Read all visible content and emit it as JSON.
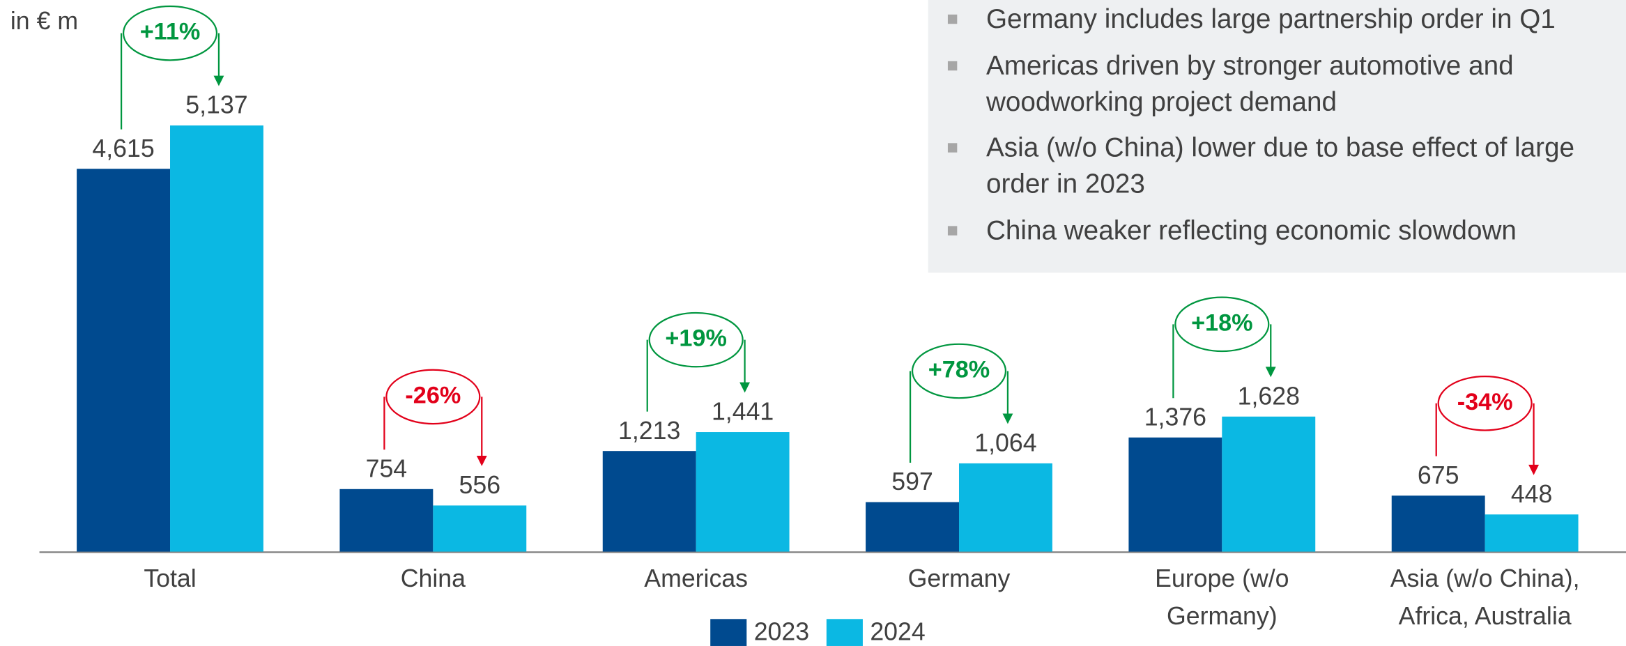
{
  "chart_data": {
    "type": "bar",
    "unit_label": "in € m",
    "categories": [
      "Total",
      "China",
      "Americas",
      "Germany",
      "Europe (w/o Germany)",
      "Asia (w/o China), Africa, Australia"
    ],
    "series": [
      {
        "name": "2023",
        "color": "#004a8f",
        "values": [
          4615,
          754,
          1213,
          597,
          1376,
          675
        ],
        "value_labels": [
          "4,615",
          "754",
          "1,213",
          "597",
          "1,376",
          "675"
        ]
      },
      {
        "name": "2024",
        "color": "#0bb8e3",
        "values": [
          5137,
          556,
          1441,
          1064,
          1628,
          448
        ],
        "value_labels": [
          "5,137",
          "556",
          "1,441",
          "1,064",
          "1,628",
          "448"
        ]
      }
    ],
    "annotations": [
      {
        "text": "+11%",
        "color": "#00963f"
      },
      {
        "text": "-26%",
        "color": "#e2001a"
      },
      {
        "text": "+19%",
        "color": "#00963f"
      },
      {
        "text": "+78%",
        "color": "#00963f"
      },
      {
        "text": "+18%",
        "color": "#00963f"
      },
      {
        "text": "-34%",
        "color": "#e2001a"
      }
    ],
    "bullets": [
      [
        "Germany includes large partnership order in Q1"
      ],
      [
        "Americas driven by stronger automotive and",
        "woodworking project demand"
      ],
      [
        "Asia (w/o China) lower due to base effect of large",
        "order in 2023"
      ],
      [
        "China weaker reflecting economic slowdown"
      ]
    ]
  }
}
